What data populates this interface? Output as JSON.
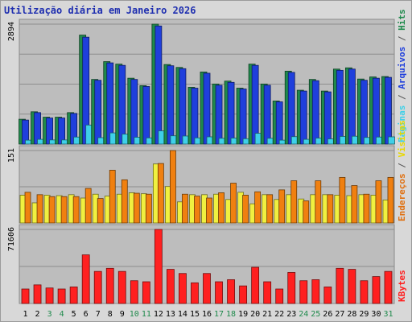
{
  "title": "Utilização diária em Janeiro 2026",
  "chart_data": {
    "type": "bar",
    "title": "Utilização diária em Janeiro 2026",
    "categories": [
      "1",
      "2",
      "3",
      "4",
      "5",
      "6",
      "7",
      "8",
      "9",
      "10",
      "11",
      "12",
      "13",
      "14",
      "15",
      "16",
      "17",
      "18",
      "19",
      "20",
      "21",
      "22",
      "23",
      "24",
      "25",
      "26",
      "27",
      "28",
      "29",
      "30",
      "31"
    ],
    "weekend_days": [
      "3",
      "4",
      "10",
      "11",
      "17",
      "18",
      "24",
      "25",
      "31"
    ],
    "panels": [
      {
        "id": "top",
        "y_max_label": "2894",
        "y_max": 2894,
        "side_label": [
          "Hits",
          "Arquivos",
          "Páginas"
        ],
        "series": [
          {
            "name": "Hits",
            "color": "#1f8a4c",
            "values": [
              600,
              780,
              650,
              650,
              760,
              2630,
              1560,
              1990,
              1930,
              1590,
              1410,
              2894,
              1920,
              1850,
              1370,
              1740,
              1450,
              1520,
              1350,
              1930,
              1450,
              1040,
              1760,
              1300,
              1560,
              1280,
              1810,
              1840,
              1570,
              1620,
              1630
            ]
          },
          {
            "name": "Arquivos",
            "color": "#1f3fdc",
            "values": [
              580,
              760,
              630,
              630,
              740,
              2580,
              1540,
              1960,
              1900,
              1560,
              1390,
              2850,
              1890,
              1820,
              1350,
              1710,
              1420,
              1490,
              1330,
              1900,
              1420,
              1020,
              1730,
              1280,
              1530,
              1260,
              1780,
              1810,
              1540,
              1590,
              1610
            ]
          },
          {
            "name": "Páginas",
            "color": "#3fd0e8",
            "values": [
              95,
              115,
              100,
              100,
              170,
              460,
              155,
              270,
              240,
              165,
              150,
              320,
              200,
              195,
              150,
              175,
              140,
              145,
              130,
              260,
              140,
              95,
              180,
              115,
              145,
              125,
              185,
              190,
              160,
              170,
              175
            ]
          }
        ]
      },
      {
        "id": "middle",
        "y_max_label": "151",
        "y_max": 151,
        "side_label": [
          "Visitas",
          "Endereços"
        ],
        "series": [
          {
            "name": "Visitas",
            "color": "#f0f040",
            "values": [
              58,
              42,
              58,
              57,
              59,
              52,
              60,
              56,
              60,
              63,
              61,
              123,
              76,
              44,
              59,
              59,
              60,
              49,
              64,
              40,
              59,
              49,
              59,
              50,
              59,
              59,
              58,
              57,
              59,
              58,
              48
            ]
          },
          {
            "name": "Endereços",
            "color": "#f08010",
            "values": [
              64,
              59,
              55,
              55,
              55,
              72,
              51,
              110,
              90,
              62,
              60,
              124,
              151,
              60,
              56,
              52,
              63,
              83,
              58,
              65,
              59,
              69,
              88,
              46,
              88,
              59,
              95,
              78,
              60,
              88,
              95
            ]
          }
        ]
      },
      {
        "id": "bottom",
        "y_max_label": "71606",
        "y_max": 71606,
        "side_label": [
          "KBytes"
        ],
        "series": [
          {
            "name": "KBytes",
            "color": "#ff2020",
            "values": [
              14000,
              18000,
              15000,
              14000,
              16000,
              47000,
              31000,
              34000,
              31000,
              22000,
              21000,
              71606,
              33000,
              29000,
              20000,
              29000,
              21000,
              23000,
              17000,
              35000,
              21000,
              14000,
              30000,
              22000,
              23000,
              16000,
              34000,
              33000,
              22000,
              26000,
              31000
            ]
          }
        ]
      }
    ]
  }
}
